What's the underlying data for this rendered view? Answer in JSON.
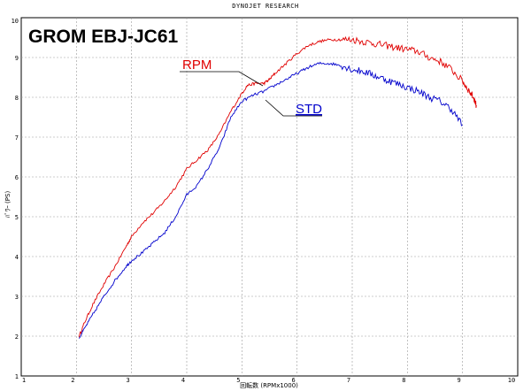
{
  "header": "DYNOJET  RESEARCH",
  "chart_data": {
    "type": "line",
    "title": "GROM  EBJ-JC61",
    "xlabel": "回転数 (RPMx1000)",
    "ylabel": "ﾊﾟﾜｰ (PS)",
    "xlim": [
      1,
      10
    ],
    "ylim": [
      1,
      10
    ],
    "x_ticks": [
      "1",
      "2",
      "3",
      "4",
      "5",
      "6",
      "7",
      "8",
      "9",
      "10"
    ],
    "y_ticks": [
      "1",
      "2",
      "3",
      "4",
      "5",
      "6",
      "7",
      "8",
      "9",
      "10"
    ],
    "grid": true,
    "series": [
      {
        "name": "RPM",
        "color": "#e00000",
        "x": [
          2.05,
          2.15,
          2.3,
          2.5,
          2.7,
          2.9,
          3.0,
          3.2,
          3.4,
          3.6,
          3.8,
          4.0,
          4.2,
          4.4,
          4.6,
          4.8,
          5.0,
          5.1,
          5.25,
          5.4,
          5.5,
          5.6,
          5.8,
          6.0,
          6.2,
          6.4,
          6.6,
          6.8,
          7.0,
          7.2,
          7.4,
          7.6,
          7.8,
          8.0,
          8.2,
          8.4,
          8.6,
          8.8,
          9.0,
          9.1,
          9.2,
          9.25
        ],
        "values": [
          2.0,
          2.35,
          2.8,
          3.3,
          3.75,
          4.25,
          4.5,
          4.85,
          5.1,
          5.4,
          5.75,
          6.2,
          6.45,
          6.7,
          7.1,
          7.65,
          8.1,
          8.3,
          8.35,
          8.35,
          8.45,
          8.6,
          8.85,
          9.1,
          9.3,
          9.4,
          9.45,
          9.45,
          9.45,
          9.4,
          9.35,
          9.3,
          9.25,
          9.2,
          9.15,
          9.0,
          8.9,
          8.7,
          8.4,
          8.2,
          8.0,
          7.8
        ]
      },
      {
        "name": "STD",
        "color": "#0000cc",
        "x": [
          2.05,
          2.15,
          2.3,
          2.5,
          2.7,
          2.9,
          3.0,
          3.2,
          3.4,
          3.6,
          3.8,
          4.0,
          4.2,
          4.4,
          4.6,
          4.8,
          5.0,
          5.2,
          5.4,
          5.6,
          5.8,
          6.0,
          6.2,
          6.4,
          6.6,
          6.8,
          7.0,
          7.2,
          7.4,
          7.6,
          7.8,
          8.0,
          8.2,
          8.4,
          8.6,
          8.8,
          9.0
        ],
        "values": [
          1.95,
          2.2,
          2.55,
          3.0,
          3.4,
          3.75,
          3.9,
          4.1,
          4.35,
          4.6,
          5.0,
          5.55,
          5.8,
          6.25,
          6.75,
          7.5,
          7.9,
          8.05,
          8.15,
          8.3,
          8.45,
          8.6,
          8.75,
          8.85,
          8.85,
          8.8,
          8.7,
          8.65,
          8.55,
          8.45,
          8.35,
          8.25,
          8.15,
          8.0,
          7.9,
          7.7,
          7.3
        ]
      }
    ],
    "annotations": [
      {
        "text": "RPM",
        "color": "#e00000"
      },
      {
        "text": "STD",
        "color": "#0000cc"
      }
    ]
  }
}
